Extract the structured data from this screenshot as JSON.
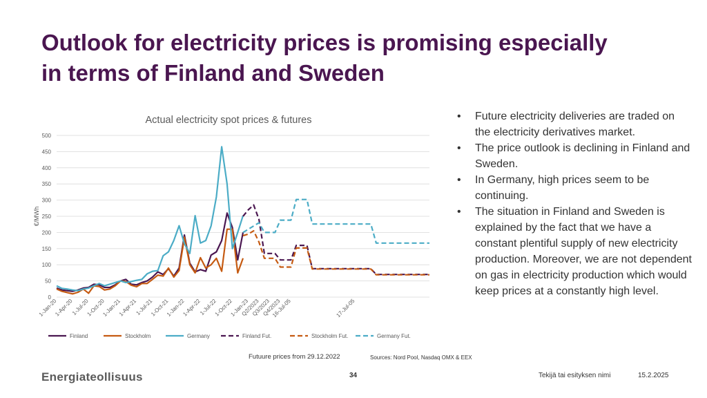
{
  "slide": {
    "title": "Outlook for electricity prices is promising especially in terms of Finland and Sweden",
    "bullets": [
      "Future electricity deliveries are traded on the electricity derivatives market.",
      "The price outlook is declining in Finland and Sweden.",
      "In Germany, high prices seem to be continuing.",
      "The situation in Finland and Sweden is explained by the fact that we have a constant plentiful supply of new electricity production. Moreover, we are not dependent on gas in electricity production which would keep prices at a constantly high level."
    ],
    "futures_note": "Futuure prices from 29.12.2022",
    "sources": "Sources: Nord Pool, Nasdaq OMX & EEX",
    "logo": "Energiateollisuus",
    "page_number": "34",
    "author": "Tekijä tai esityksen nimi",
    "date": "15.2.2025"
  },
  "colors": {
    "title": "#4a1650",
    "finland": "#4a1650",
    "stockholm": "#c55a11",
    "germany": "#4bacc6",
    "grid": "#d9d9d9",
    "axis_text": "#595959"
  },
  "chart_data": {
    "type": "line",
    "title": "Actual electricity spot prices & futures",
    "ylabel": "€/MWh",
    "xlabel": "",
    "ylim": [
      0,
      500
    ],
    "yticks": [
      0,
      50,
      100,
      150,
      200,
      250,
      300,
      350,
      400,
      450,
      500
    ],
    "xtick_labels": [
      "1-Jan-20",
      "1-Apr-20",
      "1-Jul-20",
      "1-Oct-20",
      "1-Jan-21",
      "1-Apr-21",
      "1-Jul-21",
      "1-Oct-21",
      "1-Jan-22",
      "1-Apr-22",
      "1-Jul-22",
      "1-Oct-22",
      "1-Jan-23",
      "Q2/2023",
      "Q3/2023",
      "Q4/2023",
      "16-Jul-05",
      "17-Jul-05"
    ],
    "xtick_positions": [
      0,
      3,
      6,
      9,
      12,
      15,
      18,
      21,
      24,
      27,
      30,
      33,
      36,
      38,
      40,
      42,
      44,
      56
    ],
    "x_range": [
      0,
      70
    ],
    "legend": "bottom",
    "series": [
      {
        "name": "Finland",
        "style": "solid",
        "x": [
          0,
          1,
          2,
          3,
          4,
          5,
          6,
          7,
          8,
          9,
          10,
          11,
          12,
          13,
          14,
          15,
          16,
          17,
          18,
          19,
          20,
          21,
          22,
          23,
          24,
          25,
          26,
          27,
          28,
          29,
          30,
          31,
          32,
          33,
          34,
          35
        ],
        "values": [
          28,
          22,
          20,
          18,
          22,
          28,
          30,
          40,
          38,
          30,
          30,
          38,
          50,
          55,
          40,
          38,
          45,
          50,
          62,
          78,
          70,
          88,
          65,
          90,
          192,
          105,
          78,
          85,
          80,
          130,
          140,
          175,
          260,
          215,
          115,
          200
        ]
      },
      {
        "name": "Stockholm",
        "style": "solid",
        "x": [
          0,
          1,
          2,
          3,
          4,
          5,
          6,
          7,
          8,
          9,
          10,
          11,
          12,
          13,
          14,
          15,
          16,
          17,
          18,
          19,
          20,
          21,
          22,
          23,
          24,
          25,
          26,
          27,
          28,
          29,
          30,
          31,
          32,
          33,
          34,
          35
        ],
        "values": [
          25,
          18,
          14,
          10,
          15,
          25,
          12,
          35,
          33,
          22,
          25,
          35,
          50,
          48,
          37,
          32,
          42,
          42,
          55,
          68,
          65,
          90,
          62,
          82,
          185,
          100,
          75,
          122,
          90,
          100,
          120,
          80,
          210,
          210,
          75,
          120
        ]
      },
      {
        "name": "Germany",
        "style": "solid",
        "x": [
          0,
          1,
          2,
          3,
          4,
          5,
          6,
          7,
          8,
          9,
          10,
          11,
          12,
          13,
          14,
          15,
          16,
          17,
          18,
          19,
          20,
          21,
          22,
          23,
          24,
          25,
          26,
          27,
          28,
          29,
          30,
          31,
          32,
          33,
          34,
          35
        ],
        "values": [
          35,
          27,
          25,
          22,
          20,
          25,
          28,
          35,
          42,
          35,
          40,
          45,
          50,
          45,
          48,
          52,
          55,
          72,
          80,
          82,
          128,
          140,
          175,
          221,
          165,
          135,
          252,
          167,
          175,
          220,
          310,
          465,
          350,
          150,
          200,
          252
        ]
      },
      {
        "name": "Finland Fut.",
        "style": "dashed",
        "x": [
          35,
          36,
          37,
          38,
          39,
          40,
          41,
          42,
          43,
          44,
          45,
          46,
          47,
          48,
          49,
          50,
          51,
          52,
          53,
          54,
          55,
          56,
          57,
          58,
          59,
          60,
          61,
          62,
          63,
          64,
          65,
          66,
          67,
          68,
          69,
          70
        ],
        "values": [
          250,
          270,
          285,
          240,
          135,
          135,
          135,
          115,
          115,
          115,
          160,
          160,
          160,
          88,
          88,
          88,
          88,
          88,
          88,
          88,
          88,
          88,
          88,
          88,
          88,
          70,
          70,
          70,
          70,
          70,
          70,
          70,
          70,
          70,
          70,
          70
        ]
      },
      {
        "name": "Stockholm Fut.",
        "style": "dashed",
        "x": [
          35,
          36,
          37,
          38,
          39,
          40,
          41,
          42,
          43,
          44,
          45,
          46,
          47,
          48,
          49,
          50,
          51,
          52,
          53,
          54,
          55,
          56,
          57,
          58,
          59,
          60,
          61,
          62,
          63,
          64,
          65,
          66,
          67,
          68,
          69,
          70
        ],
        "values": [
          190,
          195,
          205,
          170,
          120,
          120,
          120,
          93,
          93,
          93,
          152,
          152,
          152,
          87,
          87,
          87,
          87,
          87,
          87,
          87,
          87,
          87,
          87,
          87,
          87,
          69,
          69,
          69,
          69,
          69,
          69,
          69,
          69,
          69,
          69,
          69
        ]
      },
      {
        "name": "Germany Fut.",
        "style": "dashed",
        "x": [
          35,
          36,
          37,
          38,
          39,
          40,
          41,
          42,
          43,
          44,
          45,
          46,
          47,
          48,
          49,
          50,
          51,
          52,
          53,
          54,
          55,
          56,
          57,
          58,
          59,
          60,
          61,
          62,
          63,
          64,
          65,
          66,
          67,
          68,
          69,
          70
        ],
        "values": [
          200,
          210,
          220,
          230,
          200,
          200,
          200,
          238,
          238,
          238,
          302,
          302,
          302,
          226,
          226,
          226,
          226,
          226,
          226,
          226,
          226,
          226,
          226,
          226,
          226,
          167,
          167,
          167,
          167,
          167,
          167,
          167,
          167,
          167,
          167,
          167
        ]
      }
    ]
  }
}
